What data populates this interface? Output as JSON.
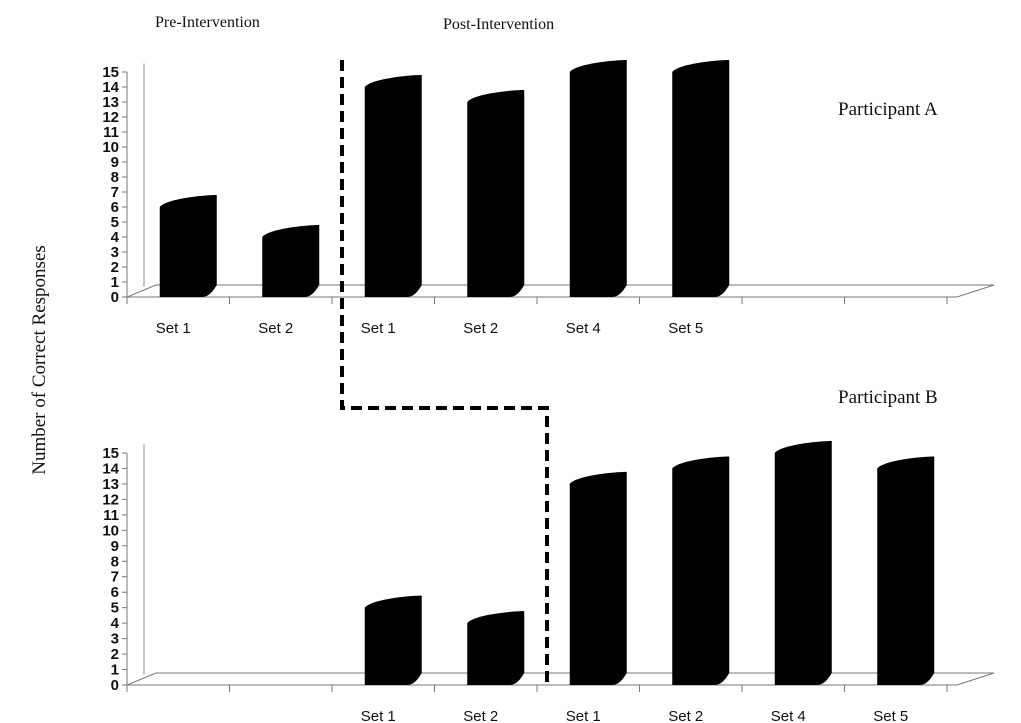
{
  "chart_data": {
    "type": "bar",
    "ylabel": "Number of Correct Responses",
    "phase_labels": [
      "Pre-Intervention",
      "Post-Intervention"
    ],
    "ylim": [
      0,
      15
    ],
    "yticks": [
      0,
      1,
      2,
      3,
      4,
      5,
      6,
      7,
      8,
      9,
      10,
      11,
      12,
      13,
      14,
      15
    ],
    "panels": [
      {
        "participant": "Participant A",
        "categories": [
          "Set 1",
          "Set 2",
          "Set 1",
          "Set 2",
          "Set 4",
          "Set 5",
          "",
          "",
          ""
        ],
        "values": [
          6,
          4,
          14,
          13,
          15,
          15,
          null,
          null,
          null
        ],
        "phase_change_after_index": 1
      },
      {
        "participant": "Participant B",
        "categories": [
          "",
          "",
          "Set 1",
          "Set 2",
          "Set 1",
          "Set 2",
          "Set 4",
          "Set 5"
        ],
        "values": [
          null,
          null,
          5,
          4,
          13,
          14,
          15,
          14
        ],
        "phase_change_after_index": 3
      }
    ],
    "bar_color": "#000000",
    "phase_line_style": "dashed"
  }
}
